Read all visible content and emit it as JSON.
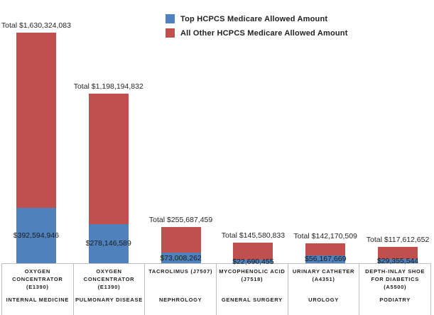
{
  "chart_data": {
    "type": "bar",
    "stacked": true,
    "title": "",
    "grid": false,
    "legend_position": "top-center",
    "ylim": [
      0,
      1630324083
    ],
    "colors": {
      "top": "#4F81BD",
      "other": "#C0504D",
      "axis": "#BFBFBF",
      "text": "#1F1F1F"
    },
    "series": [
      {
        "name": "Top HCPCS Medicare Allowed Amount",
        "color_key": "top",
        "values": [
          392594946,
          278146589,
          73008262,
          22690455,
          56167669,
          29355544
        ]
      },
      {
        "name": "All Other HCPCS Medicare Allowed Amount",
        "color_key": "other",
        "values": [
          1237729137,
          920048243,
          182679197,
          122890378,
          86002840,
          88257108
        ]
      }
    ],
    "categories": [
      {
        "code": "OXYGEN CONCENTRATOR (E1390)",
        "specialty": "INTERNAL MEDICINE",
        "total": 1630324083,
        "total_label": "Total $1,630,324,083",
        "top_label": "$392,594,946"
      },
      {
        "code": "OXYGEN CONCENTRATOR (E1390)",
        "specialty": "PULMONARY DISEASE",
        "total": 1198194832,
        "total_label": "Total $1,198,194,832",
        "top_label": "$278,146,589"
      },
      {
        "code": "TACROLIMUS (J7507)",
        "specialty": "NEPHROLOGY",
        "total": 255687459,
        "total_label": "Total $255,687,459",
        "top_label": "$73,008,262"
      },
      {
        "code": "MYCOPHENOLIC ACID (J7518)",
        "specialty": "GENERAL SURGERY",
        "total": 145580833,
        "total_label": "Total $145,580,833",
        "top_label": "$22,690,455"
      },
      {
        "code": "URINARY CATHETER (A4351)",
        "specialty": "UROLOGY",
        "total": 142170509,
        "total_label": "Total $142,170,509",
        "top_label": "$56,167,669"
      },
      {
        "code": "DEPTH-INLAY SHOE FOR DIABETICS (A5500)",
        "specialty": "PODIATRY",
        "total": 117612652,
        "total_label": "Total $117,612,652",
        "top_label": "$29,355,544"
      }
    ]
  }
}
